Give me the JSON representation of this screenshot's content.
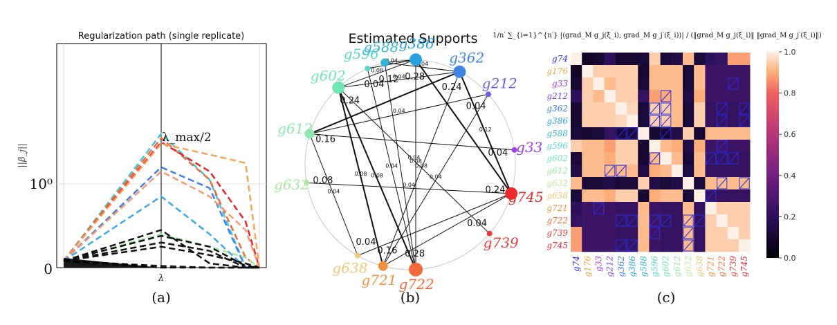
{
  "chart_data": [
    {
      "type": "line",
      "panel_label": "(a)",
      "title": "Regularization path (single replicate)",
      "ylabel": "||β_j||",
      "xlabel": "λ",
      "y_ticks": [
        "0",
        "10⁰"
      ],
      "lambda_marker_label": "λ_max/2",
      "y_scale": "log",
      "x": [
        0,
        1,
        2,
        3,
        4
      ],
      "series": [
        {
          "color": "#3fc6d8",
          "values": [
            0.08,
            1.6,
            1.05,
            0.0,
            0.0
          ]
        },
        {
          "color": "#f06a3a",
          "values": [
            0.08,
            1.55,
            1.05,
            0.12,
            0.0
          ]
        },
        {
          "color": "#e8242a",
          "values": [
            0.08,
            1.5,
            1.15,
            0.55,
            0.0
          ]
        },
        {
          "color": "#f1a45a",
          "values": [
            0.08,
            1.48,
            1.35,
            1.25,
            0.0
          ]
        },
        {
          "color": "#3f7fe6",
          "values": [
            0.08,
            1.2,
            0.95,
            0.0,
            0.0
          ]
        },
        {
          "color": "#f29a72",
          "values": [
            0.08,
            1.15,
            0.85,
            0.45,
            0.0
          ]
        },
        {
          "color": "#3aa8e6",
          "values": [
            0.08,
            0.85,
            0.4,
            0.0,
            0.0
          ]
        },
        {
          "color": "#a8e6a8",
          "values": [
            0.08,
            0.4,
            0.25,
            0.12,
            0.0
          ]
        },
        {
          "color": "#111111",
          "values": [
            0.08,
            0.45,
            0.05,
            0.0,
            0.0
          ]
        },
        {
          "color": "#111111",
          "values": [
            0.08,
            0.38,
            0.25,
            0.02,
            0.0
          ]
        },
        {
          "color": "#111111",
          "values": [
            0.08,
            0.3,
            0.2,
            0.0,
            0.0
          ]
        },
        {
          "color": "#111111",
          "values": [
            0.08,
            0.25,
            0.15,
            0.05,
            0.0
          ]
        },
        {
          "color": "#111111",
          "values": [
            0.08,
            0.0,
            0.0,
            0.0,
            0.0
          ]
        },
        {
          "color": "#111111",
          "values": [
            0.08,
            0.02,
            0.0,
            0.0,
            0.0
          ]
        }
      ]
    },
    {
      "type": "network",
      "panel_label": "(b)",
      "title": "Estimated Supports",
      "nodes": [
        {
          "id": "g588",
          "label": "g588",
          "color": "#33b3d6",
          "size": 6,
          "degree_label": "0.12"
        },
        {
          "id": "g386",
          "label": "g386",
          "color": "#2aa1de",
          "size": 9,
          "degree_label": "0.28"
        },
        {
          "id": "g362",
          "label": "g362",
          "color": "#3f84e0",
          "size": 9,
          "degree_label": "0.24"
        },
        {
          "id": "g212",
          "label": "g212",
          "color": "#6f5ee6",
          "size": 4,
          "degree_label": "0.04"
        },
        {
          "id": "g33",
          "label": "g33",
          "color": "#9a40ec",
          "size": 4,
          "degree_label": "0.04"
        },
        {
          "id": "g745",
          "label": "g745",
          "color": "#ee2a2a",
          "size": 9,
          "degree_label": "0.24"
        },
        {
          "id": "g739",
          "label": "g739",
          "color": "#ee3a3a",
          "size": 4,
          "degree_label": "0.04"
        },
        {
          "id": "g722",
          "label": "g722",
          "color": "#f26a3a",
          "size": 10,
          "degree_label": "0.28"
        },
        {
          "id": "g721",
          "label": "g721",
          "color": "#f2923e",
          "size": 7,
          "degree_label": "0.16"
        },
        {
          "id": "g638",
          "label": "g638",
          "color": "#f0c77a",
          "size": 4,
          "degree_label": "0.04"
        },
        {
          "id": "g632",
          "label": "g632",
          "color": "#b0e6a0",
          "size": 4,
          "degree_label": "0.08"
        },
        {
          "id": "g612",
          "label": "g612",
          "color": "#8fe6b0",
          "size": 7,
          "degree_label": "0.16"
        },
        {
          "id": "g602",
          "label": "g602",
          "color": "#6fe6b4",
          "size": 9,
          "degree_label": "0.24"
        },
        {
          "id": "g596",
          "label": "g596",
          "color": "#54d8c9",
          "size": 4,
          "degree_label": "0.04"
        }
      ],
      "edges": [
        {
          "from": "g588",
          "to": "g362",
          "weight": "0.04",
          "width": 1
        },
        {
          "from": "g588",
          "to": "g386",
          "weight": "",
          "width": 1
        },
        {
          "from": "g386",
          "to": "g596",
          "weight": "0.04",
          "width": 1
        },
        {
          "from": "g386",
          "to": "g745",
          "weight": "",
          "width": 2
        },
        {
          "from": "g386",
          "to": "g722",
          "weight": "0.08",
          "width": 1
        },
        {
          "from": "g362",
          "to": "g745",
          "weight": "0.12",
          "width": 2
        },
        {
          "from": "g362",
          "to": "g612",
          "weight": "",
          "width": 2
        },
        {
          "from": "g362",
          "to": "g721",
          "weight": "0.08",
          "width": 1
        },
        {
          "from": "g212",
          "to": "g612",
          "weight": "0.04",
          "width": 1
        },
        {
          "from": "g33",
          "to": "g612",
          "weight": "",
          "width": 1
        },
        {
          "from": "g602",
          "to": "g386",
          "weight": "0.08",
          "width": 1
        },
        {
          "from": "g602",
          "to": "g362",
          "weight": "0.04",
          "width": 1
        },
        {
          "from": "g602",
          "to": "g722",
          "weight": "0.08",
          "width": 2
        },
        {
          "from": "g602",
          "to": "g721",
          "weight": "0.08",
          "width": 2
        },
        {
          "from": "g602",
          "to": "g739",
          "weight": "0.04",
          "width": 1
        },
        {
          "from": "g596",
          "to": "g722",
          "weight": "0.04",
          "width": 1
        },
        {
          "from": "g632",
          "to": "g745",
          "weight": "0.04",
          "width": 1
        },
        {
          "from": "g638",
          "to": "g612",
          "weight": "0.04",
          "width": 1
        },
        {
          "from": "g721",
          "to": "g212",
          "weight": "0.04",
          "width": 1
        },
        {
          "from": "g722",
          "to": "g588",
          "weight": "",
          "width": 1
        },
        {
          "from": "g745",
          "to": "g638",
          "weight": "",
          "width": 1
        },
        {
          "from": "g745",
          "to": "g721",
          "weight": "",
          "width": 1
        }
      ]
    },
    {
      "type": "heatmap",
      "panel_label": "(c)",
      "title": "1/n′ ∑_{i=1}^{n′} |⟨grad_M g_j(ξ_i), grad_M g_j′(ξ_i)⟩| / (‖grad_M g_j(ξ_i)‖ ‖grad_M g_j′(ξ_i)‖)",
      "labels": [
        "g74",
        "g176",
        "g33",
        "g212",
        "g362",
        "g386",
        "g588",
        "g596",
        "g602",
        "g612",
        "g632",
        "g638",
        "g721",
        "g722",
        "g739",
        "g745"
      ],
      "label_colors": [
        "#2f2fe6",
        "#f2a23a",
        "#a23ae6",
        "#7a4ae6",
        "#3f7fe0",
        "#2aa8de",
        "#33b3d6",
        "#54d8c9",
        "#6fe6b4",
        "#9fe6a8",
        "#c2e6a0",
        "#f0c77a",
        "#f2923e",
        "#f26a3a",
        "#ee3a3a",
        "#e8242a"
      ],
      "colorbar_ticks": [
        "0.0",
        "0.2",
        "0.4",
        "0.6",
        "0.8",
        "1.0"
      ],
      "vmin": 0.0,
      "vmax": 1.0,
      "matrix": [
        [
          1.0,
          0.08,
          0.1,
          0.2,
          0.1,
          0.1,
          0.12,
          0.95,
          0.12,
          0.15,
          0.92,
          0.12,
          0.2,
          0.22,
          0.88,
          0.88
        ],
        [
          0.08,
          1.0,
          0.95,
          0.95,
          0.95,
          0.95,
          0.1,
          0.92,
          0.92,
          0.92,
          0.12,
          0.92,
          0.25,
          0.25,
          0.25,
          0.25
        ],
        [
          0.1,
          0.95,
          1.0,
          0.92,
          0.95,
          0.95,
          0.12,
          0.92,
          0.92,
          0.92,
          0.12,
          0.92,
          0.25,
          0.25,
          0.25,
          0.25
        ],
        [
          0.2,
          0.95,
          0.92,
          1.0,
          0.95,
          0.95,
          0.22,
          0.88,
          0.9,
          0.92,
          0.15,
          0.9,
          0.25,
          0.25,
          0.25,
          0.25
        ],
        [
          0.1,
          0.95,
          0.95,
          0.95,
          1.0,
          0.96,
          0.12,
          0.95,
          0.95,
          0.92,
          0.12,
          0.95,
          0.22,
          0.22,
          0.22,
          0.22
        ],
        [
          0.1,
          0.95,
          0.95,
          0.95,
          0.96,
          1.0,
          0.12,
          0.95,
          0.95,
          0.92,
          0.12,
          0.95,
          0.22,
          0.22,
          0.22,
          0.22
        ],
        [
          0.12,
          0.1,
          0.12,
          0.22,
          0.12,
          0.12,
          1.0,
          0.1,
          0.1,
          0.15,
          0.95,
          0.1,
          0.92,
          0.92,
          0.92,
          0.92
        ],
        [
          0.95,
          0.92,
          0.92,
          0.88,
          0.95,
          0.95,
          0.1,
          1.0,
          0.92,
          0.9,
          0.15,
          0.9,
          0.25,
          0.25,
          0.25,
          0.25
        ],
        [
          0.12,
          0.92,
          0.92,
          0.9,
          0.95,
          0.95,
          0.1,
          0.92,
          1.0,
          0.92,
          0.12,
          0.92,
          0.22,
          0.22,
          0.22,
          0.22
        ],
        [
          0.15,
          0.92,
          0.92,
          0.92,
          0.92,
          0.92,
          0.15,
          0.9,
          0.92,
          1.0,
          0.15,
          0.92,
          0.22,
          0.22,
          0.22,
          0.22
        ],
        [
          0.92,
          0.12,
          0.12,
          0.15,
          0.12,
          0.12,
          0.95,
          0.15,
          0.12,
          0.15,
          1.0,
          0.12,
          0.92,
          0.92,
          0.92,
          0.92
        ],
        [
          0.12,
          0.92,
          0.92,
          0.9,
          0.95,
          0.95,
          0.1,
          0.9,
          0.92,
          0.92,
          0.12,
          1.0,
          0.22,
          0.22,
          0.22,
          0.22
        ],
        [
          0.2,
          0.25,
          0.25,
          0.25,
          0.22,
          0.22,
          0.92,
          0.25,
          0.22,
          0.22,
          0.92,
          0.22,
          1.0,
          0.95,
          0.95,
          0.95
        ],
        [
          0.22,
          0.25,
          0.25,
          0.25,
          0.22,
          0.22,
          0.92,
          0.25,
          0.22,
          0.22,
          0.92,
          0.22,
          0.95,
          1.0,
          0.95,
          0.95
        ],
        [
          0.88,
          0.25,
          0.25,
          0.25,
          0.22,
          0.22,
          0.92,
          0.25,
          0.22,
          0.22,
          0.92,
          0.22,
          0.95,
          0.95,
          1.0,
          0.95
        ],
        [
          0.88,
          0.25,
          0.25,
          0.25,
          0.22,
          0.22,
          0.92,
          0.25,
          0.22,
          0.22,
          0.92,
          0.22,
          0.95,
          0.95,
          0.95,
          1.0
        ]
      ],
      "hatched_cells": [
        [
          2,
          14
        ],
        [
          3,
          8
        ],
        [
          4,
          7
        ],
        [
          4,
          8
        ],
        [
          4,
          13
        ],
        [
          4,
          15
        ],
        [
          5,
          7
        ],
        [
          5,
          8
        ],
        [
          5,
          13
        ],
        [
          5,
          15
        ],
        [
          6,
          4
        ],
        [
          6,
          5
        ],
        [
          6,
          8
        ],
        [
          7,
          13
        ],
        [
          8,
          7
        ],
        [
          8,
          12
        ],
        [
          8,
          13
        ],
        [
          8,
          14
        ],
        [
          9,
          3
        ],
        [
          9,
          4
        ],
        [
          10,
          13
        ],
        [
          10,
          15
        ],
        [
          11,
          12
        ],
        [
          12,
          2
        ],
        [
          13,
          4
        ],
        [
          13,
          5
        ],
        [
          13,
          7
        ],
        [
          13,
          8
        ],
        [
          13,
          10
        ],
        [
          13,
          11
        ],
        [
          14,
          7
        ],
        [
          14,
          10
        ],
        [
          15,
          4
        ],
        [
          15,
          5
        ],
        [
          15,
          10
        ]
      ]
    }
  ]
}
